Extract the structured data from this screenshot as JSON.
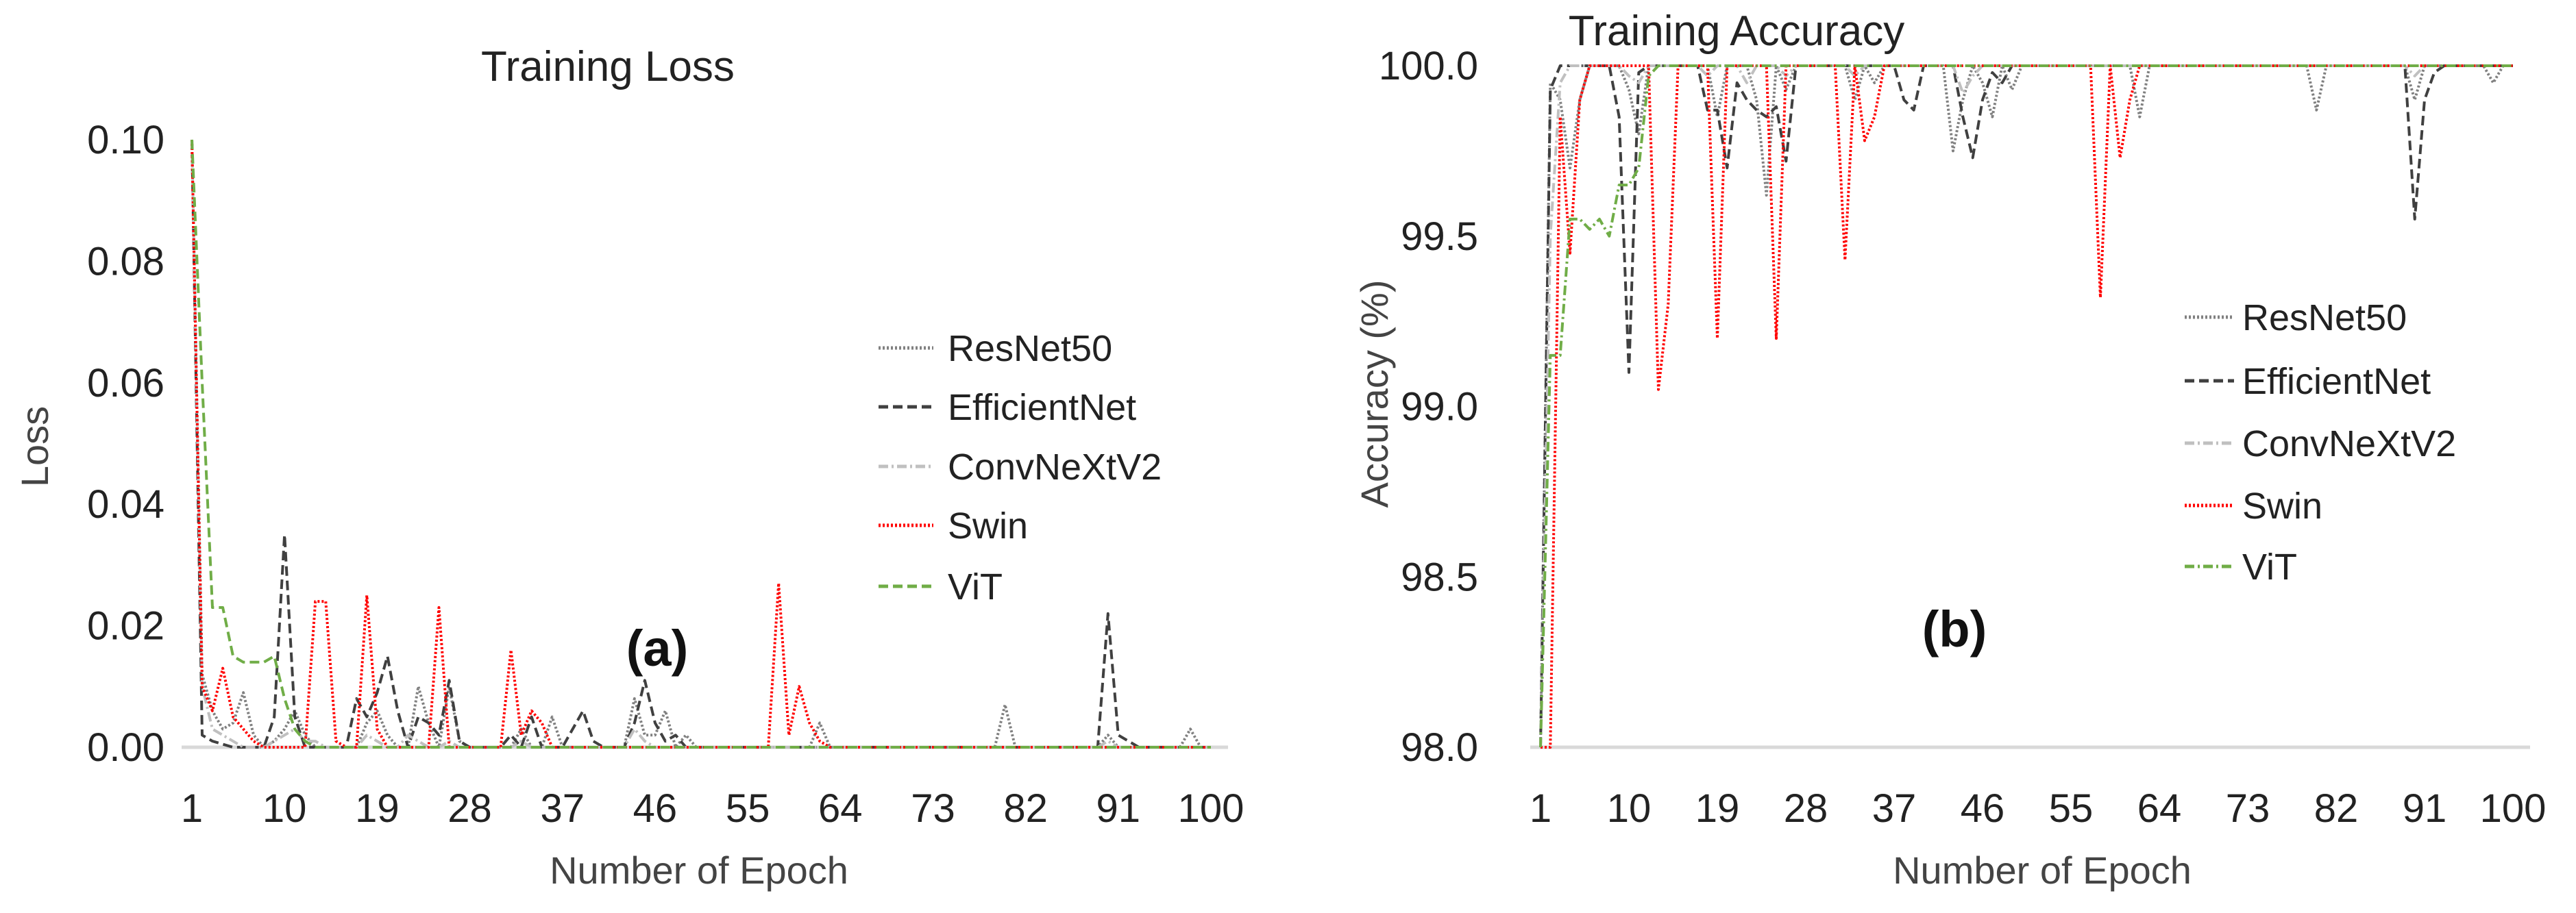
{
  "chart_data": [
    {
      "type": "line",
      "title": "Training Loss",
      "xlabel": "Number of Epoch",
      "ylabel": "Loss",
      "panel_label": "(a)",
      "xlim": [
        1,
        100
      ],
      "ylim": [
        0,
        0.1
      ],
      "xticks": [
        1,
        10,
        19,
        28,
        37,
        46,
        55,
        64,
        73,
        82,
        91,
        100
      ],
      "yticks": [
        "0.00",
        "0.02",
        "0.04",
        "0.06",
        "0.08",
        "0.10"
      ],
      "grid": false,
      "legend_position": "right",
      "series": [
        {
          "name": "ResNet50",
          "color": "#808080",
          "style": "dotted",
          "values": [
            0.1,
            0.012,
            0.006,
            0.003,
            0.004,
            0.009,
            0.002,
            0,
            0.001,
            0.003,
            0.006,
            0.002,
            0,
            0,
            0,
            0,
            0,
            0.004,
            0.006,
            0.002,
            0,
            0,
            0.01,
            0.004,
            0,
            0.01,
            0.001,
            0,
            0,
            0,
            0,
            0,
            0.003,
            0,
            0,
            0.005,
            0,
            0,
            0,
            0,
            0,
            0,
            0,
            0.008,
            0.002,
            0.002,
            0.006,
            0,
            0.002,
            0,
            0,
            0,
            0,
            0,
            0,
            0,
            0,
            0,
            0,
            0,
            0,
            0.004,
            0,
            0,
            0,
            0,
            0,
            0,
            0,
            0,
            0,
            0,
            0,
            0,
            0,
            0,
            0,
            0,
            0,
            0.007,
            0,
            0,
            0,
            0,
            0,
            0,
            0,
            0,
            0,
            0.002,
            0,
            0,
            0,
            0,
            0,
            0,
            0,
            0.003,
            0,
            0
          ]
        },
        {
          "name": "EfficientNet",
          "color": "#404040",
          "style": "dashed",
          "values": [
            0.1,
            0.002,
            0.001,
            0.0005,
            0,
            0,
            0,
            0,
            0.005,
            0.035,
            0.005,
            0,
            0,
            0,
            0,
            0,
            0.008,
            0.005,
            0.009,
            0.015,
            0.006,
            0,
            0.005,
            0.004,
            0.002,
            0.011,
            0.001,
            0,
            0,
            0,
            0,
            0.002,
            0,
            0.005,
            0,
            0,
            0,
            0.003,
            0.006,
            0.001,
            0,
            0,
            0,
            0.004,
            0.011,
            0.004,
            0.001,
            0.002,
            0,
            0,
            0,
            0,
            0,
            0,
            0,
            0,
            0,
            0,
            0,
            0,
            0,
            0,
            0,
            0,
            0,
            0,
            0,
            0,
            0,
            0,
            0,
            0,
            0,
            0,
            0,
            0,
            0,
            0,
            0,
            0,
            0,
            0,
            0,
            0,
            0,
            0,
            0,
            0,
            0,
            0.022,
            0.002,
            0.001,
            0,
            0,
            0,
            0,
            0,
            0,
            0,
            0
          ]
        },
        {
          "name": "ConvNeXtV2",
          "color": "#c0c0c0",
          "style": "dashdot",
          "values": [
            0.1,
            0.01,
            0.003,
            0.002,
            0.001,
            0,
            0,
            0,
            0.001,
            0.002,
            0.003,
            0.001,
            0.001,
            0,
            0,
            0,
            0,
            0.002,
            0.001,
            0,
            0,
            0.002,
            0.001,
            0,
            0,
            0.001,
            0,
            0,
            0,
            0,
            0,
            0,
            0.001,
            0,
            0,
            0,
            0,
            0,
            0,
            0,
            0,
            0,
            0,
            0.003,
            0.001,
            0,
            0,
            0,
            0,
            0,
            0,
            0,
            0,
            0,
            0,
            0,
            0,
            0,
            0,
            0,
            0,
            0,
            0,
            0,
            0,
            0,
            0,
            0,
            0,
            0,
            0,
            0,
            0,
            0,
            0,
            0,
            0,
            0,
            0,
            0,
            0,
            0,
            0,
            0,
            0,
            0,
            0,
            0,
            0,
            0.001,
            0,
            0,
            0,
            0,
            0,
            0,
            0,
            0,
            0,
            0
          ]
        },
        {
          "name": "Swin",
          "color": "#ff0000",
          "style": "dotted",
          "values": [
            0.1,
            0.01,
            0.006,
            0.013,
            0.005,
            0.003,
            0.001,
            0,
            0,
            0,
            0,
            0,
            0.024,
            0.024,
            0.001,
            0,
            0,
            0.025,
            0.003,
            0,
            0,
            0,
            0,
            0,
            0.023,
            0,
            0,
            0,
            0,
            0,
            0,
            0.016,
            0.002,
            0.006,
            0.004,
            0,
            0,
            0,
            0,
            0,
            0,
            0,
            0,
            0,
            0,
            0,
            0,
            0,
            0,
            0,
            0,
            0,
            0,
            0,
            0,
            0,
            0,
            0.027,
            0.002,
            0.01,
            0.004,
            0.001,
            0,
            0,
            0,
            0,
            0,
            0,
            0,
            0,
            0,
            0,
            0,
            0,
            0,
            0,
            0,
            0,
            0,
            0,
            0,
            0,
            0,
            0,
            0,
            0,
            0,
            0,
            0,
            0,
            0,
            0,
            0,
            0,
            0,
            0,
            0,
            0,
            0,
            0
          ]
        },
        {
          "name": "ViT",
          "color": "#70ad47",
          "style": "dashed",
          "values": [
            0.1,
            0.06,
            0.023,
            0.023,
            0.015,
            0.014,
            0.014,
            0.014,
            0.015,
            0.008,
            0.003,
            0.001,
            0,
            0,
            0,
            0,
            0,
            0,
            0,
            0,
            0,
            0,
            0,
            0,
            0,
            0,
            0,
            0,
            0,
            0,
            0,
            0,
            0,
            0,
            0,
            0,
            0,
            0,
            0,
            0,
            0,
            0,
            0,
            0,
            0,
            0,
            0,
            0,
            0,
            0,
            0,
            0,
            0,
            0,
            0,
            0,
            0,
            0,
            0,
            0,
            0,
            0,
            0,
            0,
            0,
            0,
            0,
            0,
            0,
            0,
            0,
            0,
            0,
            0,
            0,
            0,
            0,
            0,
            0,
            0,
            0,
            0,
            0,
            0,
            0,
            0,
            0,
            0,
            0,
            0,
            0,
            0,
            0,
            0,
            0,
            0,
            0,
            0,
            0,
            0
          ]
        }
      ]
    },
    {
      "type": "line",
      "title": "Training Accuracy",
      "xlabel": "Number of Epoch",
      "ylabel": "Accuracy (%)",
      "panel_label": "(b)",
      "xlim": [
        1,
        100
      ],
      "ylim": [
        98.0,
        100.0
      ],
      "xticks": [
        1,
        10,
        19,
        28,
        37,
        46,
        55,
        64,
        73,
        82,
        91,
        100
      ],
      "yticks": [
        "98.0",
        "98.5",
        "99.0",
        "99.5",
        "100.0"
      ],
      "grid": false,
      "legend_position": "right",
      "series": [
        {
          "name": "ResNet50",
          "color": "#808080",
          "style": "dotted",
          "values": [
            98.0,
            99.95,
            99.9,
            99.7,
            99.9,
            100,
            100,
            100,
            100,
            99.93,
            99.8,
            100,
            100,
            100,
            100,
            100,
            100,
            100,
            99.85,
            100,
            100,
            100,
            99.9,
            99.62,
            100,
            99.93,
            100,
            100,
            100,
            100,
            100,
            100,
            99.9,
            100,
            99.95,
            100,
            100,
            100,
            100,
            100,
            100,
            100,
            99.75,
            99.9,
            100,
            99.95,
            99.85,
            100,
            99.93,
            100,
            100,
            100,
            100,
            100,
            100,
            100,
            100,
            100,
            100,
            100,
            100,
            99.85,
            100,
            100,
            100,
            100,
            100,
            100,
            100,
            100,
            100,
            100,
            100,
            100,
            100,
            100,
            100,
            100,
            100,
            99.87,
            100,
            100,
            100,
            100,
            100,
            100,
            100,
            100,
            100,
            99.9,
            100,
            100,
            100,
            100,
            100,
            100,
            100,
            99.95,
            100,
            100
          ]
        },
        {
          "name": "EfficientNet",
          "color": "#404040",
          "style": "dashed",
          "values": [
            98.0,
            99.93,
            100,
            100,
            100,
            100,
            100,
            100,
            99.85,
            99.1,
            99.98,
            100,
            100,
            100,
            100,
            100,
            100,
            99.87,
            99.87,
            99.7,
            99.95,
            99.9,
            99.87,
            99.85,
            99.88,
            99.72,
            100,
            100,
            100,
            100,
            100,
            100,
            100,
            100,
            100,
            100,
            100,
            99.9,
            99.87,
            100,
            100,
            100,
            100,
            99.85,
            99.73,
            99.9,
            99.98,
            99.95,
            100,
            100,
            100,
            100,
            100,
            100,
            100,
            100,
            100,
            100,
            100,
            100,
            100,
            100,
            100,
            100,
            100,
            100,
            100,
            100,
            100,
            100,
            100,
            100,
            100,
            100,
            100,
            100,
            100,
            100,
            100,
            100,
            100,
            100,
            100,
            100,
            100,
            100,
            100,
            100,
            100,
            99.55,
            99.9,
            99.98,
            100,
            100,
            100,
            100,
            100,
            100,
            100,
            100
          ]
        },
        {
          "name": "ConvNeXtV2",
          "color": "#c0c0c0",
          "style": "dashdot",
          "values": [
            98.0,
            99.5,
            99.95,
            100,
            100,
            100,
            100,
            100,
            100,
            99.97,
            99.95,
            100,
            100,
            100,
            100,
            100,
            100,
            99.97,
            100,
            100,
            100,
            99.95,
            100,
            100,
            100,
            99.97,
            100,
            100,
            100,
            100,
            100,
            100,
            99.97,
            100,
            100,
            100,
            100,
            100,
            100,
            100,
            100,
            100,
            100,
            99.92,
            99.97,
            100,
            100,
            100,
            100,
            100,
            100,
            100,
            100,
            100,
            100,
            100,
            100,
            100,
            100,
            100,
            100,
            100,
            100,
            100,
            100,
            100,
            100,
            100,
            100,
            100,
            100,
            100,
            100,
            100,
            100,
            100,
            100,
            100,
            100,
            100,
            100,
            100,
            100,
            100,
            100,
            100,
            100,
            100,
            100,
            99.97,
            100,
            100,
            100,
            100,
            100,
            100,
            100,
            100,
            100,
            100
          ]
        },
        {
          "name": "Swin",
          "color": "#ff0000",
          "style": "dotted",
          "values": [
            98.0,
            98.0,
            99.85,
            99.45,
            99.9,
            100,
            100,
            100,
            100,
            100,
            100,
            100,
            99.05,
            99.3,
            100,
            100,
            100,
            100,
            99.2,
            100,
            100,
            100,
            100,
            100,
            99.2,
            100,
            100,
            100,
            100,
            100,
            100,
            99.43,
            100,
            99.78,
            99.85,
            100,
            100,
            100,
            100,
            100,
            100,
            100,
            100,
            100,
            100,
            100,
            100,
            100,
            100,
            100,
            100,
            100,
            100,
            100,
            100,
            100,
            100,
            99.32,
            100,
            99.73,
            99.9,
            100,
            100,
            100,
            100,
            100,
            100,
            100,
            100,
            100,
            100,
            100,
            100,
            100,
            100,
            100,
            100,
            100,
            100,
            100,
            100,
            100,
            100,
            100,
            100,
            100,
            100,
            100,
            100,
            100,
            100,
            100,
            100,
            100,
            100,
            100,
            100,
            100,
            100,
            100
          ]
        },
        {
          "name": "ViT",
          "color": "#70ad47",
          "style": "dashdot",
          "values": [
            98.0,
            99.15,
            99.15,
            99.55,
            99.55,
            99.52,
            99.55,
            99.5,
            99.65,
            99.65,
            99.7,
            99.97,
            100,
            100,
            100,
            100,
            100,
            100,
            100,
            100,
            100,
            100,
            100,
            100,
            100,
            100,
            100,
            100,
            100,
            100,
            100,
            100,
            100,
            100,
            100,
            100,
            100,
            100,
            100,
            100,
            100,
            100,
            100,
            100,
            100,
            100,
            100,
            100,
            100,
            100,
            100,
            100,
            100,
            100,
            100,
            100,
            100,
            100,
            100,
            100,
            100,
            100,
            100,
            100,
            100,
            100,
            100,
            100,
            100,
            100,
            100,
            100,
            100,
            100,
            100,
            100,
            100,
            100,
            100,
            100,
            100,
            100,
            100,
            100,
            100,
            100,
            100,
            100,
            100,
            100,
            100,
            100,
            100,
            100,
            100,
            100,
            100,
            100,
            100,
            100
          ]
        }
      ]
    }
  ]
}
